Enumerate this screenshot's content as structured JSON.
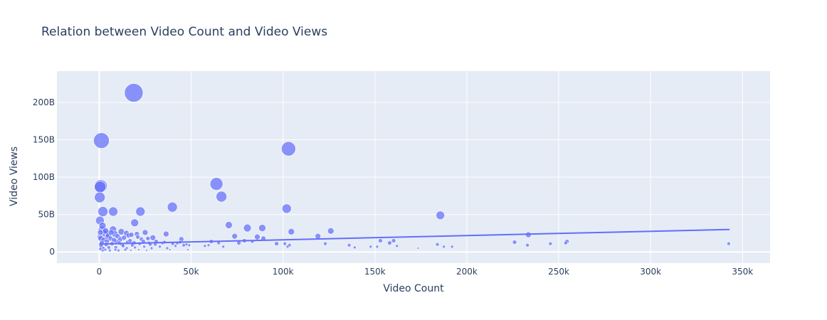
{
  "chart_data": {
    "type": "scatter",
    "title": "Relation between Video Count and Video Views",
    "xlabel": "Video Count",
    "ylabel": "Video Views",
    "xlim": [
      -23000,
      365000
    ],
    "ylim": [
      -15000000000.0,
      242000000000.0
    ],
    "xticks": [
      0,
      50000,
      100000,
      150000,
      200000,
      250000,
      300000,
      350000
    ],
    "xtick_labels": [
      "0",
      "50k",
      "100k",
      "150k",
      "200k",
      "250k",
      "300k",
      "350k"
    ],
    "yticks": [
      0,
      50000000000.0,
      100000000000.0,
      150000000000.0,
      200000000000.0
    ],
    "ytick_labels": [
      "0",
      "50B",
      "100B",
      "150B",
      "200B"
    ],
    "grid": true,
    "colors": {
      "marker": "#636efa",
      "trend": "#636efa",
      "plot_bg": "#e5ecf6",
      "grid": "#ffffff"
    },
    "trendline": {
      "x": [
        0,
        343000
      ],
      "y": [
        10500000000.0,
        30000000000.0
      ]
    },
    "points": [
      [
        18800,
        213000000000.0,
        26
      ],
      [
        1200,
        149000000000.0,
        22
      ],
      [
        103000,
        138000000000.0,
        20
      ],
      [
        800,
        88000000000.0,
        18
      ],
      [
        63800,
        91000000000.0,
        18
      ],
      [
        500,
        87000000000.0,
        16
      ],
      [
        66500,
        74000000000.0,
        15
      ],
      [
        300,
        73000000000.0,
        15
      ],
      [
        39800,
        60000000000.0,
        14
      ],
      [
        2000,
        54000000000.0,
        14
      ],
      [
        7600,
        54000000000.0,
        13
      ],
      [
        22400,
        54000000000.0,
        13
      ],
      [
        102000,
        58000000000.0,
        13
      ],
      [
        185600,
        49000000000.0,
        12
      ],
      [
        400,
        42000000000.0,
        12
      ],
      [
        19300,
        39000000000.0,
        11
      ],
      [
        70500,
        36000000000.0,
        10
      ],
      [
        80600,
        32000000000.0,
        11
      ],
      [
        88700,
        32000000000.0,
        10
      ],
      [
        7500,
        30000000000.0,
        10
      ],
      [
        1500,
        30000000000.0,
        10
      ],
      [
        3000,
        25000000000.0,
        10
      ],
      [
        12000,
        27000000000.0,
        9
      ],
      [
        104500,
        27000000000.0,
        9
      ],
      [
        126000,
        28000000000.0,
        9
      ],
      [
        233500,
        23000000000.0,
        8
      ],
      [
        14800,
        25000000000.0,
        8
      ],
      [
        25000,
        26000000000.0,
        8
      ],
      [
        36400,
        24000000000.0,
        8
      ],
      [
        73700,
        21000000000.0,
        8
      ],
      [
        119000,
        21000000000.0,
        8
      ],
      [
        86000,
        20000000000.0,
        8
      ],
      [
        29200,
        19000000000.0,
        8
      ],
      [
        44700,
        17000000000.0,
        7
      ],
      [
        89300,
        18000000000.0,
        7
      ],
      [
        500,
        20000000000.0,
        8
      ],
      [
        900,
        18000000000.0,
        8
      ],
      [
        2500,
        16000000000.0,
        8
      ],
      [
        4500,
        20000000000.0,
        8
      ],
      [
        6200,
        18000000000.0,
        7
      ],
      [
        8500,
        24000000000.0,
        9
      ],
      [
        10000,
        21000000000.0,
        7
      ],
      [
        16000,
        22000000000.0,
        7
      ],
      [
        17500,
        23000000000.0,
        7
      ],
      [
        20500,
        24000000000.0,
        7
      ],
      [
        21000,
        20000000000.0,
        6
      ],
      [
        23000,
        17000000000.0,
        6
      ],
      [
        26500,
        18000000000.0,
        6
      ],
      [
        31000,
        14000000000.0,
        6
      ],
      [
        34500,
        12000000000.0,
        5
      ],
      [
        40000,
        11000000000.0,
        5
      ],
      [
        42500,
        12000000000.0,
        5
      ],
      [
        46000,
        9000000000.0,
        5
      ],
      [
        49000,
        9000000000.0,
        4
      ],
      [
        57500,
        8000000000.0,
        4
      ],
      [
        61000,
        14000000000.0,
        6
      ],
      [
        65000,
        12000000000.0,
        5
      ],
      [
        67500,
        7000000000.0,
        4
      ],
      [
        76000,
        12000000000.0,
        6
      ],
      [
        79000,
        15000000000.0,
        6
      ],
      [
        83300,
        14000000000.0,
        5
      ],
      [
        96500,
        11000000000.0,
        6
      ],
      [
        101000,
        11000000000.0,
        5
      ],
      [
        103500,
        9000000000.0,
        5
      ],
      [
        102500,
        7000000000.0,
        4
      ],
      [
        123000,
        11000000000.0,
        5
      ],
      [
        136000,
        9000000000.0,
        5
      ],
      [
        139000,
        6000000000.0,
        4
      ],
      [
        147700,
        7000000000.0,
        4
      ],
      [
        151200,
        7000000000.0,
        4
      ],
      [
        153000,
        15000000000.0,
        6
      ],
      [
        158000,
        12000000000.0,
        6
      ],
      [
        160200,
        15000000000.0,
        6
      ],
      [
        162000,
        8000000000.0,
        4
      ],
      [
        173500,
        5000000000.0,
        3
      ],
      [
        184000,
        10000000000.0,
        5
      ],
      [
        187500,
        7000000000.0,
        4
      ],
      [
        192000,
        7000000000.0,
        4
      ],
      [
        226000,
        13000000000.0,
        6
      ],
      [
        233000,
        9000000000.0,
        5
      ],
      [
        245500,
        11000000000.0,
        5
      ],
      [
        253800,
        12000000000.0,
        5
      ],
      [
        254500,
        14000000000.0,
        6
      ],
      [
        342500,
        11000000000.0,
        5
      ],
      [
        1000,
        8000000000.0,
        6
      ],
      [
        2200,
        5000000000.0,
        5
      ],
      [
        3800,
        10000000000.0,
        6
      ],
      [
        5200,
        6000000000.0,
        5
      ],
      [
        7000,
        11000000000.0,
        6
      ],
      [
        9000,
        6000000000.0,
        5
      ],
      [
        11000,
        12000000000.0,
        6
      ],
      [
        13000,
        8000000000.0,
        5
      ],
      [
        15000,
        5000000000.0,
        4
      ],
      [
        18000,
        9000000000.0,
        5
      ],
      [
        19500,
        6000000000.0,
        4
      ],
      [
        22000,
        11000000000.0,
        5
      ],
      [
        24500,
        7000000000.0,
        4
      ],
      [
        27000,
        12000000000.0,
        5
      ],
      [
        28500,
        5000000000.0,
        4
      ],
      [
        30500,
        10000000000.0,
        5
      ],
      [
        33000,
        7000000000.0,
        4
      ],
      [
        37000,
        5000000000.0,
        4
      ],
      [
        1800,
        35000000000.0,
        10
      ],
      [
        3500,
        28000000000.0,
        9
      ],
      [
        5000,
        22000000000.0,
        8
      ],
      [
        6500,
        26000000000.0,
        8
      ],
      [
        9500,
        14000000000.0,
        7
      ],
      [
        11500,
        17000000000.0,
        7
      ],
      [
        13500,
        19000000000.0,
        7
      ],
      [
        15500,
        13000000000.0,
        6
      ],
      [
        600,
        26000000000.0,
        8
      ],
      [
        1400,
        12000000000.0,
        7
      ],
      [
        4200,
        14000000000.0,
        7
      ],
      [
        8000,
        16000000000.0,
        7
      ],
      [
        12500,
        10000000000.0,
        6
      ],
      [
        16800,
        15000000000.0,
        6
      ],
      [
        19000,
        12000000000.0,
        6
      ],
      [
        24000,
        14000000000.0,
        6
      ],
      [
        27800,
        10000000000.0,
        5
      ],
      [
        35500,
        13000000000.0,
        5
      ],
      [
        41500,
        8000000000.0,
        4
      ],
      [
        44000,
        13000000000.0,
        5
      ],
      [
        47500,
        10000000000.0,
        4
      ],
      [
        59500,
        9000000000.0,
        4
      ],
      [
        700,
        4000000000.0,
        5
      ],
      [
        1900,
        2000000000.0,
        4
      ],
      [
        3300,
        3000000000.0,
        4
      ],
      [
        5800,
        2000000000.0,
        4
      ],
      [
        8800,
        3000000000.0,
        4
      ],
      [
        10500,
        2000000000.0,
        4
      ],
      [
        14200,
        3000000000.0,
        4
      ],
      [
        17200,
        2000000000.0,
        3
      ],
      [
        21500,
        3000000000.0,
        3
      ],
      [
        25800,
        2000000000.0,
        3
      ],
      [
        38500,
        3000000000.0,
        3
      ],
      [
        48200,
        3000000000.0,
        3
      ]
    ]
  }
}
